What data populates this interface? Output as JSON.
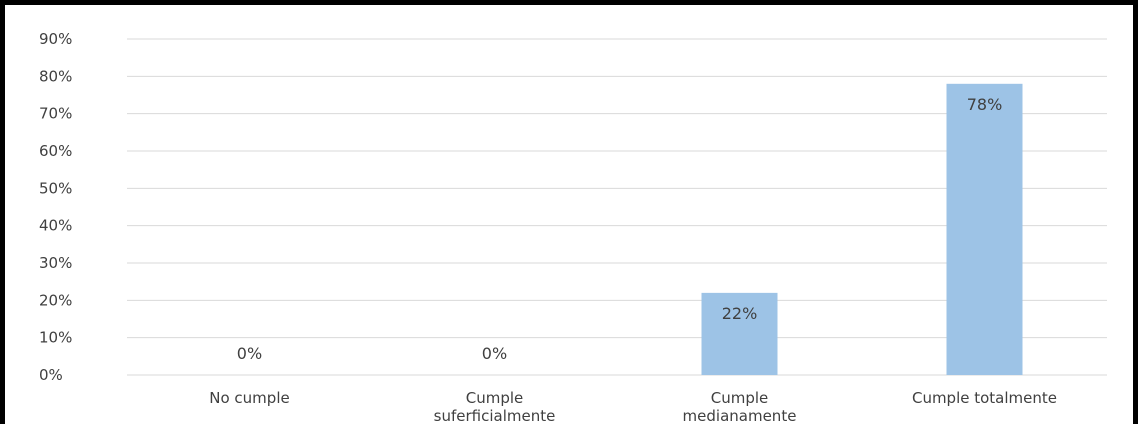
{
  "chart_data": {
    "type": "bar",
    "categories": [
      [
        "No cumple"
      ],
      [
        "Cumple",
        "suferficialmente"
      ],
      [
        "Cumple",
        "medianamente"
      ],
      [
        "Cumple totalmente"
      ]
    ],
    "values": [
      0,
      0,
      22,
      78
    ],
    "data_labels": [
      "0%",
      "0%",
      "22%",
      "78%"
    ],
    "y_ticks": [
      "0%",
      "10%",
      "20%",
      "30%",
      "40%",
      "50%",
      "60%",
      "70%",
      "80%",
      "90%"
    ],
    "ylim": [
      0,
      90
    ],
    "title": "",
    "xlabel": "",
    "ylabel": "",
    "grid": true,
    "legend": "none",
    "colors": {
      "bar": "#9dc3e6",
      "grid": "#d9d9d9",
      "text": "#404040",
      "frame": "#000000"
    }
  }
}
